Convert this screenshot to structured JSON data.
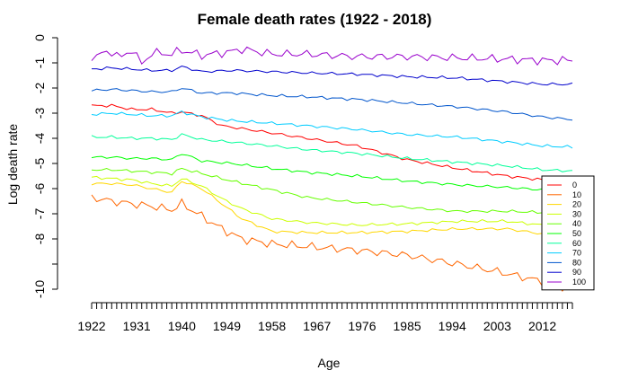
{
  "chart_data": {
    "type": "line",
    "title": "Female death rates (1922 - 2018)",
    "xlabel": "Age",
    "ylabel": "Log death rate",
    "x_range": [
      1922,
      2018
    ],
    "ylim": [
      -10,
      0
    ],
    "x_tick_labels": [
      "1922",
      "1931",
      "1940",
      "1949",
      "1958",
      "1967",
      "1976",
      "1985",
      "1994",
      "2003",
      "2012"
    ],
    "y_tick_labels": [
      "0",
      "-1",
      "-2",
      "-3",
      "-4",
      "-5",
      "-6",
      "-7",
      "-8",
      "",
      "-10"
    ],
    "legend_position": "bottom-right",
    "series": [
      {
        "name": "0",
        "color": "#FF0000",
        "points": [
          [
            1922,
            -2.7
          ],
          [
            1926,
            -2.7
          ],
          [
            1930,
            -2.85
          ],
          [
            1934,
            -2.85
          ],
          [
            1938,
            -3.0
          ],
          [
            1940,
            -2.95
          ],
          [
            1944,
            -3.1
          ],
          [
            1948,
            -3.5
          ],
          [
            1955,
            -3.7
          ],
          [
            1965,
            -4.0
          ],
          [
            1975,
            -4.3
          ],
          [
            1985,
            -4.85
          ],
          [
            1995,
            -5.2
          ],
          [
            2005,
            -5.5
          ],
          [
            2012,
            -5.65
          ],
          [
            2018,
            -5.75
          ]
        ]
      },
      {
        "name": "10",
        "color": "#FF6600",
        "points": [
          [
            1922,
            -6.35
          ],
          [
            1926,
            -6.5
          ],
          [
            1930,
            -6.6
          ],
          [
            1934,
            -6.7
          ],
          [
            1938,
            -6.85
          ],
          [
            1940,
            -6.6
          ],
          [
            1944,
            -7.1
          ],
          [
            1948,
            -7.6
          ],
          [
            1952,
            -8.0
          ],
          [
            1958,
            -8.2
          ],
          [
            1965,
            -8.3
          ],
          [
            1975,
            -8.45
          ],
          [
            1985,
            -8.65
          ],
          [
            1995,
            -9.0
          ],
          [
            2003,
            -9.3
          ],
          [
            2010,
            -9.6
          ],
          [
            2018,
            -10.0
          ]
        ]
      },
      {
        "name": "20",
        "color": "#FFD700",
        "points": [
          [
            1922,
            -5.8
          ],
          [
            1926,
            -5.8
          ],
          [
            1930,
            -5.85
          ],
          [
            1934,
            -6.0
          ],
          [
            1938,
            -6.15
          ],
          [
            1940,
            -5.7
          ],
          [
            1944,
            -6.0
          ],
          [
            1948,
            -6.6
          ],
          [
            1952,
            -7.2
          ],
          [
            1958,
            -7.7
          ],
          [
            1965,
            -7.75
          ],
          [
            1975,
            -7.75
          ],
          [
            1985,
            -7.7
          ],
          [
            1995,
            -7.6
          ],
          [
            2005,
            -7.6
          ],
          [
            2012,
            -7.8
          ],
          [
            2018,
            -7.85
          ]
        ]
      },
      {
        "name": "30",
        "color": "#CCFF00",
        "points": [
          [
            1922,
            -5.55
          ],
          [
            1926,
            -5.6
          ],
          [
            1930,
            -5.65
          ],
          [
            1934,
            -5.8
          ],
          [
            1938,
            -5.9
          ],
          [
            1940,
            -5.6
          ],
          [
            1944,
            -5.9
          ],
          [
            1948,
            -6.4
          ],
          [
            1952,
            -6.8
          ],
          [
            1958,
            -7.2
          ],
          [
            1965,
            -7.35
          ],
          [
            1975,
            -7.45
          ],
          [
            1985,
            -7.4
          ],
          [
            1995,
            -7.3
          ],
          [
            2005,
            -7.3
          ],
          [
            2012,
            -7.45
          ],
          [
            2018,
            -7.5
          ]
        ]
      },
      {
        "name": "40",
        "color": "#66FF00",
        "points": [
          [
            1922,
            -5.25
          ],
          [
            1926,
            -5.25
          ],
          [
            1930,
            -5.3
          ],
          [
            1934,
            -5.35
          ],
          [
            1938,
            -5.4
          ],
          [
            1940,
            -5.2
          ],
          [
            1944,
            -5.4
          ],
          [
            1950,
            -5.7
          ],
          [
            1958,
            -6.05
          ],
          [
            1965,
            -6.35
          ],
          [
            1975,
            -6.55
          ],
          [
            1985,
            -6.75
          ],
          [
            1995,
            -6.9
          ],
          [
            2005,
            -6.9
          ],
          [
            2012,
            -6.95
          ],
          [
            2018,
            -7.0
          ]
        ]
      },
      {
        "name": "50",
        "color": "#00FF00",
        "points": [
          [
            1922,
            -4.75
          ],
          [
            1926,
            -4.75
          ],
          [
            1930,
            -4.8
          ],
          [
            1934,
            -4.8
          ],
          [
            1938,
            -4.85
          ],
          [
            1940,
            -4.6
          ],
          [
            1944,
            -4.9
          ],
          [
            1950,
            -5.0
          ],
          [
            1958,
            -5.2
          ],
          [
            1965,
            -5.35
          ],
          [
            1975,
            -5.5
          ],
          [
            1985,
            -5.7
          ],
          [
            1995,
            -5.85
          ],
          [
            2005,
            -5.95
          ],
          [
            2012,
            -6.05
          ],
          [
            2018,
            -6.1
          ]
        ]
      },
      {
        "name": "60",
        "color": "#00FF99",
        "points": [
          [
            1922,
            -3.95
          ],
          [
            1926,
            -3.95
          ],
          [
            1930,
            -4.0
          ],
          [
            1934,
            -4.0
          ],
          [
            1938,
            -4.05
          ],
          [
            1940,
            -3.85
          ],
          [
            1944,
            -4.05
          ],
          [
            1950,
            -4.15
          ],
          [
            1958,
            -4.3
          ],
          [
            1965,
            -4.45
          ],
          [
            1975,
            -4.6
          ],
          [
            1985,
            -4.8
          ],
          [
            1995,
            -4.95
          ],
          [
            2005,
            -5.1
          ],
          [
            2012,
            -5.25
          ],
          [
            2018,
            -5.3
          ]
        ]
      },
      {
        "name": "70",
        "color": "#00CCFF",
        "points": [
          [
            1922,
            -3.05
          ],
          [
            1926,
            -3.0
          ],
          [
            1930,
            -3.05
          ],
          [
            1934,
            -3.1
          ],
          [
            1938,
            -3.1
          ],
          [
            1940,
            -2.95
          ],
          [
            1944,
            -3.15
          ],
          [
            1950,
            -3.3
          ],
          [
            1958,
            -3.4
          ],
          [
            1965,
            -3.5
          ],
          [
            1975,
            -3.65
          ],
          [
            1985,
            -3.85
          ],
          [
            1995,
            -3.95
          ],
          [
            2005,
            -4.15
          ],
          [
            2012,
            -4.3
          ],
          [
            2018,
            -4.35
          ]
        ]
      },
      {
        "name": "80",
        "color": "#0055CC",
        "points": [
          [
            1922,
            -2.1
          ],
          [
            1926,
            -2.05
          ],
          [
            1930,
            -2.1
          ],
          [
            1934,
            -2.15
          ],
          [
            1938,
            -2.15
          ],
          [
            1940,
            -2.0
          ],
          [
            1944,
            -2.2
          ],
          [
            1950,
            -2.2
          ],
          [
            1958,
            -2.3
          ],
          [
            1965,
            -2.35
          ],
          [
            1975,
            -2.45
          ],
          [
            1985,
            -2.6
          ],
          [
            1995,
            -2.75
          ],
          [
            2005,
            -2.95
          ],
          [
            2012,
            -3.15
          ],
          [
            2018,
            -3.25
          ]
        ]
      },
      {
        "name": "90",
        "color": "#0000CC",
        "points": [
          [
            1922,
            -1.25
          ],
          [
            1926,
            -1.2
          ],
          [
            1930,
            -1.25
          ],
          [
            1934,
            -1.3
          ],
          [
            1938,
            -1.3
          ],
          [
            1940,
            -1.15
          ],
          [
            1944,
            -1.35
          ],
          [
            1950,
            -1.3
          ],
          [
            1958,
            -1.35
          ],
          [
            1965,
            -1.4
          ],
          [
            1975,
            -1.45
          ],
          [
            1985,
            -1.55
          ],
          [
            1995,
            -1.6
          ],
          [
            2005,
            -1.75
          ],
          [
            2012,
            -1.85
          ],
          [
            2018,
            -1.85
          ]
        ]
      },
      {
        "name": "100",
        "color": "#9900CC",
        "points": [
          [
            1922,
            -0.75
          ],
          [
            1926,
            -0.55
          ],
          [
            1928,
            -0.8
          ],
          [
            1930,
            -0.45
          ],
          [
            1932,
            -1.05
          ],
          [
            1934,
            -0.6
          ],
          [
            1938,
            -0.65
          ],
          [
            1940,
            -0.5
          ],
          [
            1944,
            -0.7
          ],
          [
            1950,
            -0.55
          ],
          [
            1952,
            -0.45
          ],
          [
            1958,
            -0.65
          ],
          [
            1965,
            -0.65
          ],
          [
            1975,
            -0.75
          ],
          [
            1985,
            -0.75
          ],
          [
            1995,
            -0.8
          ],
          [
            2005,
            -0.85
          ],
          [
            2012,
            -0.9
          ],
          [
            2018,
            -0.9
          ]
        ]
      }
    ]
  }
}
